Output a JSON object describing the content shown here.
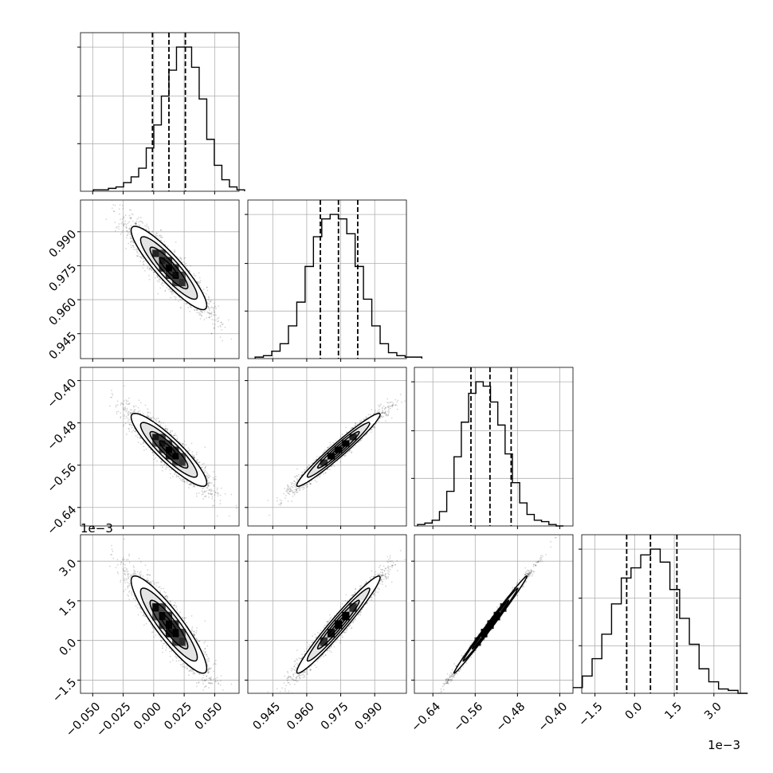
{
  "chart_data": {
    "type": "corner",
    "title": "",
    "params": [
      {
        "lim": [
          -0.06,
          0.07
        ],
        "ticks": [
          -0.05,
          -0.025,
          0.0,
          0.025,
          0.05
        ],
        "tick_labels": [
          "−0.050",
          "−0.025",
          "0.000",
          "0.025",
          "0.050"
        ],
        "mean": 0.0125,
        "sd": 0.0155,
        "quantiles": [
          -0.001,
          0.0125,
          0.026
        ]
      },
      {
        "lim": [
          0.934,
          1.004
        ],
        "ticks": [
          0.945,
          0.96,
          0.975,
          0.99
        ],
        "tick_labels": [
          "0.945",
          "0.960",
          "0.975",
          "0.990"
        ],
        "mean": 0.974,
        "sd": 0.0092,
        "quantiles": [
          0.966,
          0.974,
          0.9825
        ]
      },
      {
        "lim": [
          -0.675,
          -0.375
        ],
        "ticks": [
          -0.64,
          -0.56,
          -0.48,
          -0.4
        ],
        "tick_labels": [
          "−0.64",
          "−0.56",
          "−0.48",
          "−0.40"
        ],
        "mean": -0.531,
        "sd": 0.0345,
        "quantiles": [
          -0.568,
          -0.532,
          -0.492
        ]
      },
      {
        "lim": [
          -2.0,
          4.0
        ],
        "ticks": [
          -1.5,
          0.0,
          1.5,
          3.0
        ],
        "tick_labels": [
          "−1.5",
          "0.0",
          "1.5",
          "3.0"
        ],
        "offset_label": "1e−3",
        "mean": 0.6,
        "sd": 0.92,
        "quantiles": [
          -0.3,
          0.6,
          1.6
        ]
      }
    ],
    "correlations": [
      [
        1,
        -0.9,
        -0.9,
        -0.9
      ],
      [
        -0.9,
        1,
        0.97,
        0.97
      ],
      [
        -0.9,
        0.97,
        1,
        0.995
      ],
      [
        -0.9,
        0.97,
        0.995,
        1
      ]
    ],
    "histograms": [
      [
        1,
        1,
        2,
        3,
        6,
        10,
        16,
        30,
        46,
        66,
        84,
        100,
        100,
        86,
        64,
        36,
        18,
        8,
        3,
        1
      ],
      [
        1,
        2,
        5,
        10,
        22,
        38,
        62,
        82,
        94,
        97,
        94,
        84,
        62,
        40,
        22,
        10,
        4,
        2,
        1,
        1
      ],
      [
        1,
        2,
        4,
        10,
        24,
        48,
        72,
        92,
        100,
        97,
        86,
        70,
        50,
        30,
        16,
        8,
        4,
        3,
        1,
        0
      ],
      [
        1,
        2,
        4,
        12,
        24,
        41,
        62,
        80,
        87,
        96,
        100,
        91,
        72,
        52,
        34,
        17,
        8,
        3,
        2,
        0
      ]
    ],
    "grid": true,
    "contour_levels": [
      0.5,
      1.0,
      1.5,
      2.0
    ]
  }
}
